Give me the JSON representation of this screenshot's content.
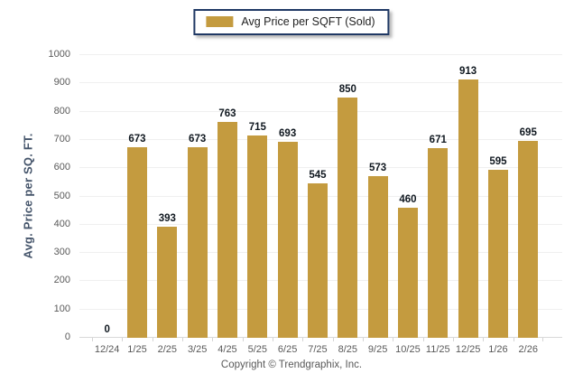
{
  "legend": {
    "label": "Avg Price per SQFT (Sold)"
  },
  "chart_data": {
    "type": "bar",
    "title": "Avg Price per SQFT (Sold)",
    "categories": [
      "12/24",
      "1/25",
      "2/25",
      "3/25",
      "4/25",
      "5/25",
      "6/25",
      "7/25",
      "8/25",
      "9/25",
      "10/25",
      "11/25",
      "12/25",
      "1/26",
      "2/26"
    ],
    "values": [
      0,
      673,
      393,
      673,
      763,
      715,
      693,
      545,
      850,
      573,
      460,
      671,
      913,
      595,
      695
    ],
    "xlabel": "",
    "ylabel": "Avg. Price per SQ. FT.",
    "ylim": [
      0,
      1000
    ],
    "ytick_step": 100,
    "grid": true,
    "legend_position": "top-center"
  },
  "footer": {
    "copyright": "Copyright © Trendgraphix, Inc."
  },
  "colors": {
    "bar": "#C49B3F",
    "legend_border": "#1F3864",
    "gridline": "#EFEFEF",
    "axis_line": "#D9D9D9",
    "axis_text": "#595959",
    "value_label": "#101820",
    "y_title_text": "#44546A"
  }
}
